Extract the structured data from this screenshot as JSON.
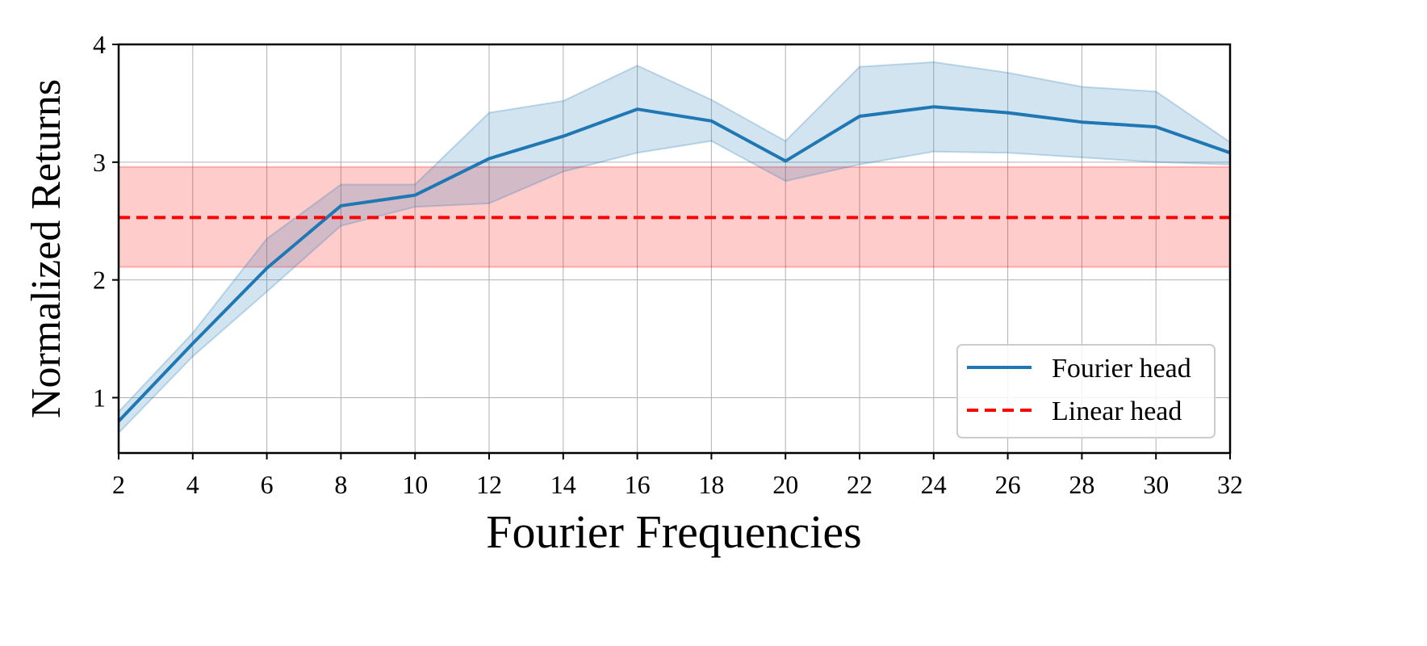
{
  "chart_data": {
    "type": "line",
    "xlabel": "Fourier Frequencies",
    "ylabel": "Normalized Returns",
    "xlim": [
      2,
      32
    ],
    "ylim": [
      0.53,
      4.0
    ],
    "xticks": [
      2,
      4,
      6,
      8,
      10,
      12,
      14,
      16,
      18,
      20,
      22,
      24,
      26,
      28,
      30,
      32
    ],
    "yticks": [
      1,
      2,
      3,
      4
    ],
    "grid": true,
    "legend_position": "lower-right",
    "series": [
      {
        "name": "Fourier head",
        "color": "#1f77b4",
        "style": "solid",
        "x": [
          2,
          4,
          6,
          8,
          10,
          12,
          14,
          16,
          18,
          20,
          22,
          24,
          26,
          28,
          30,
          32
        ],
        "y": [
          0.8,
          1.46,
          2.1,
          2.63,
          2.72,
          3.03,
          3.22,
          3.45,
          3.35,
          3.01,
          3.39,
          3.47,
          3.42,
          3.34,
          3.3,
          3.08
        ],
        "y_lower": [
          0.7,
          1.35,
          1.9,
          2.46,
          2.62,
          2.65,
          2.92,
          3.08,
          3.18,
          2.84,
          2.98,
          3.09,
          3.08,
          3.04,
          3.0,
          2.98
        ],
        "y_upper": [
          0.88,
          1.55,
          2.35,
          2.81,
          2.81,
          3.42,
          3.52,
          3.82,
          3.53,
          3.18,
          3.81,
          3.85,
          3.76,
          3.64,
          3.6,
          3.17
        ]
      },
      {
        "name": "Linear head",
        "color": "#ff0000",
        "style": "dashed",
        "x": [
          2,
          32
        ],
        "y": [
          2.53,
          2.53
        ],
        "y_lower": [
          2.11,
          2.11
        ],
        "y_upper": [
          2.96,
          2.96
        ]
      }
    ]
  }
}
